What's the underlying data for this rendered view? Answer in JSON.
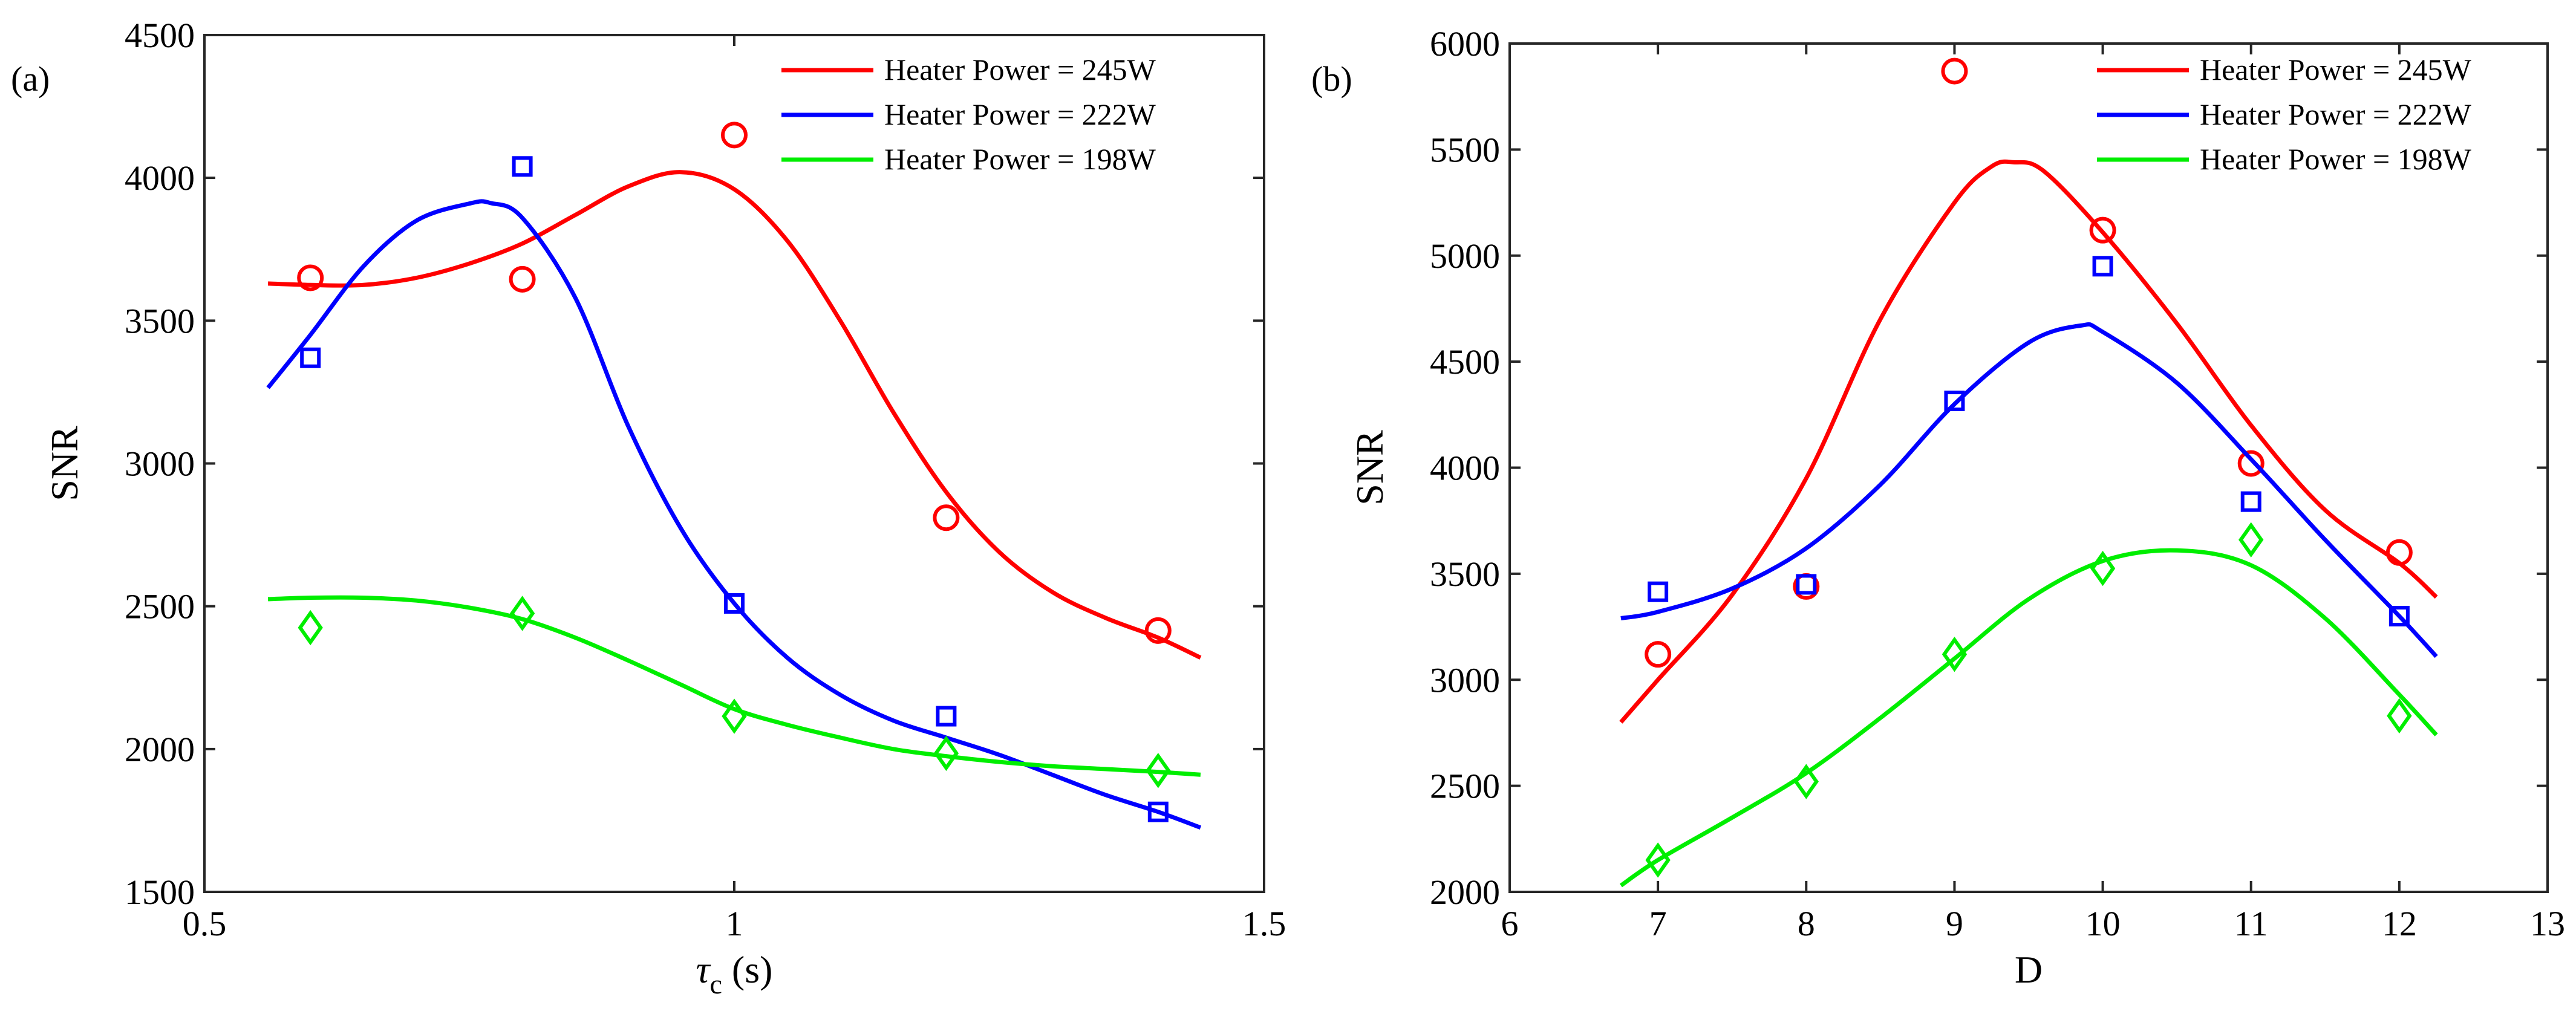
{
  "chart_data": [
    {
      "panel_label": "(a)",
      "type": "scatter",
      "xlabel_symbol": "τ",
      "xlabel_subscript": "c",
      "xlabel_suffix": " (s)",
      "ylabel": "SNR",
      "xlim": [
        0.5,
        1.5
      ],
      "ylim": [
        1500,
        4500
      ],
      "xticks": [
        0.5,
        1,
        1.5
      ],
      "xtick_labels": [
        "0.5",
        "1",
        "1.5"
      ],
      "yticks": [
        1500,
        2000,
        2500,
        3000,
        3500,
        4000,
        4500
      ],
      "ytick_labels": [
        "1500",
        "2000",
        "2500",
        "3000",
        "3500",
        "4000",
        "4500"
      ],
      "legend_position": "top-right",
      "series": [
        {
          "name": "Heater Power = 245W",
          "color": "#ff0000",
          "marker": "circle",
          "points": {
            "x": [
              0.6,
              0.8,
              1.0,
              1.2,
              1.4
            ],
            "y": [
              3650,
              3645,
              4150,
              2810,
              2415
            ]
          },
          "fit": {
            "x": [
              0.56,
              0.6,
              0.65,
              0.7,
              0.75,
              0.8,
              0.85,
              0.9,
              0.95,
              1.0,
              1.05,
              1.1,
              1.15,
              1.2,
              1.25,
              1.3,
              1.35,
              1.4,
              1.44
            ],
            "y": [
              3630,
              3625,
              3625,
              3650,
              3700,
              3770,
              3870,
              3970,
              4020,
              3960,
              3780,
              3500,
              3180,
              2900,
              2690,
              2550,
              2460,
              2390,
              2320
            ]
          }
        },
        {
          "name": "Heater Power = 222W",
          "color": "#0000ff",
          "marker": "square",
          "points": {
            "x": [
              0.6,
              0.8,
              1.0,
              1.2,
              1.4
            ],
            "y": [
              3370,
              4040,
              2510,
              2115,
              1780
            ]
          },
          "fit": {
            "x": [
              0.56,
              0.6,
              0.65,
              0.7,
              0.75,
              0.77,
              0.8,
              0.85,
              0.9,
              0.95,
              1.0,
              1.05,
              1.1,
              1.15,
              1.2,
              1.25,
              1.3,
              1.35,
              1.4,
              1.44
            ],
            "y": [
              3265,
              3450,
              3690,
              3850,
              3910,
              3912,
              3860,
              3580,
              3130,
              2770,
              2510,
              2320,
              2190,
              2100,
              2040,
              1980,
              1910,
              1840,
              1780,
              1725
            ]
          }
        },
        {
          "name": "Heater Power = 198W",
          "color": "#00ee00",
          "marker": "diamond",
          "points": {
            "x": [
              0.6,
              0.8,
              1.0,
              1.2,
              1.4
            ],
            "y": [
              2425,
              2475,
              2115,
              1985,
              1925
            ]
          },
          "fit": {
            "x": [
              0.56,
              0.6,
              0.65,
              0.7,
              0.75,
              0.8,
              0.85,
              0.9,
              0.95,
              1.0,
              1.05,
              1.1,
              1.15,
              1.2,
              1.25,
              1.3,
              1.35,
              1.4,
              1.44
            ],
            "y": [
              2525,
              2530,
              2530,
              2520,
              2495,
              2455,
              2390,
              2310,
              2225,
              2140,
              2085,
              2040,
              2000,
              1975,
              1955,
              1940,
              1930,
              1920,
              1910
            ]
          }
        }
      ]
    },
    {
      "panel_label": "(b)",
      "type": "scatter",
      "xlabel_symbol": "D",
      "xlabel_subscript": "",
      "xlabel_suffix": "",
      "ylabel": "SNR",
      "xlim": [
        6,
        13
      ],
      "ylim": [
        2000,
        6000
      ],
      "xticks": [
        6,
        7,
        8,
        9,
        10,
        11,
        12,
        13
      ],
      "xtick_labels": [
        "6",
        "7",
        "8",
        "9",
        "10",
        "11",
        "12",
        "13"
      ],
      "yticks": [
        2000,
        2500,
        3000,
        3500,
        4000,
        4500,
        5000,
        5500,
        6000
      ],
      "ytick_labels": [
        "2000",
        "2500",
        "3000",
        "3500",
        "4000",
        "4500",
        "5000",
        "5500",
        "6000"
      ],
      "legend_position": "top-right",
      "series": [
        {
          "name": "Heater Power = 245W",
          "color": "#ff0000",
          "marker": "circle",
          "points": {
            "x": [
              7,
              8,
              9,
              10,
              11,
              12
            ],
            "y": [
              3120,
              3440,
              5870,
              5120,
              4020,
              3600
            ]
          },
          "fit": {
            "x": [
              6.75,
              7.0,
              7.5,
              8.0,
              8.5,
              9.0,
              9.25,
              9.4,
              9.6,
              10.0,
              10.5,
              11.0,
              11.5,
              12.0,
              12.25
            ],
            "y": [
              2800,
              3000,
              3400,
              3950,
              4700,
              5250,
              5420,
              5440,
              5400,
              5110,
              4680,
              4200,
              3800,
              3550,
              3390
            ]
          }
        },
        {
          "name": "Heater Power = 222W",
          "color": "#0000ff",
          "marker": "square",
          "points": {
            "x": [
              7,
              8,
              9,
              10,
              11,
              12
            ],
            "y": [
              3415,
              3450,
              4315,
              4950,
              3840,
              3300
            ]
          },
          "fit": {
            "x": [
              6.75,
              7.0,
              7.5,
              8.0,
              8.5,
              9.0,
              9.5,
              9.85,
              10.0,
              10.5,
              11.0,
              11.5,
              12.0,
              12.25
            ],
            "y": [
              3290,
              3320,
              3430,
              3620,
              3920,
              4300,
              4590,
              4670,
              4640,
              4400,
              4040,
              3660,
              3300,
              3110
            ]
          }
        },
        {
          "name": "Heater Power = 198W",
          "color": "#00ee00",
          "marker": "diamond",
          "points": {
            "x": [
              7,
              8,
              9,
              10,
              11,
              12
            ],
            "y": [
              2150,
              2520,
              3120,
              3525,
              3660,
              2830
            ]
          },
          "fit": {
            "x": [
              6.75,
              7.0,
              7.5,
              8.0,
              8.5,
              9.0,
              9.5,
              10.0,
              10.5,
              11.0,
              11.5,
              12.0,
              12.25
            ],
            "y": [
              2030,
              2150,
              2350,
              2560,
              2820,
              3100,
              3380,
              3560,
              3610,
              3540,
              3290,
              2930,
              2740
            ]
          }
        }
      ]
    }
  ]
}
